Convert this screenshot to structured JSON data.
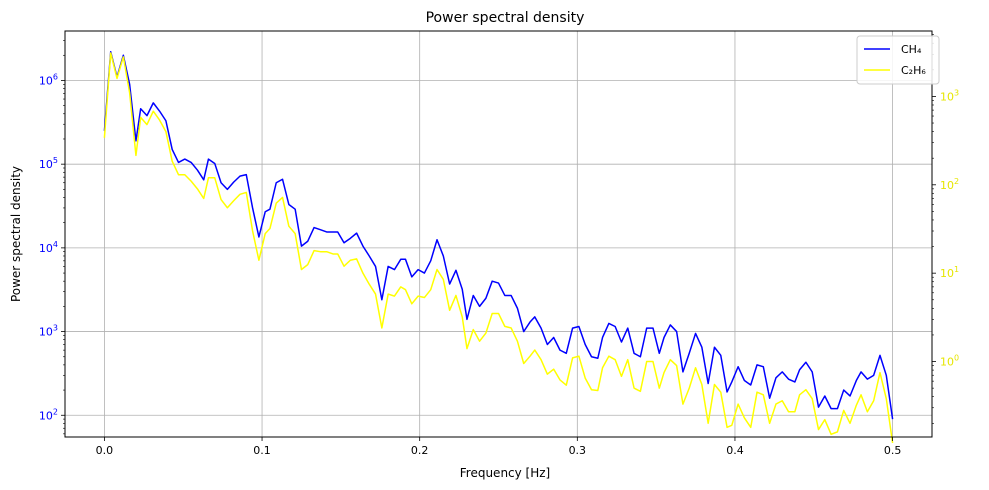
{
  "chart_data": {
    "type": "line",
    "title": "Power spectral density",
    "xlabel": "Frequency [Hz]",
    "ylabel_left": "Power spectral density",
    "ylabel_right": "",
    "xlim": [
      -0.025,
      0.525
    ],
    "x_ticks": [
      0.0,
      0.1,
      0.2,
      0.3,
      0.4,
      0.5
    ],
    "x_tick_labels": [
      "0.0",
      "0.1",
      "0.2",
      "0.3",
      "0.4",
      "0.5"
    ],
    "left_axis": {
      "scale": "log",
      "ylim": [
        55,
        3900000
      ],
      "ticks": [
        100,
        1000,
        10000,
        100000,
        1000000
      ],
      "tick_labels": [
        {
          "base": "10",
          "exp": "2"
        },
        {
          "base": "10",
          "exp": "3"
        },
        {
          "base": "10",
          "exp": "4"
        },
        {
          "base": "10",
          "exp": "5"
        },
        {
          "base": "10",
          "exp": "6"
        }
      ],
      "color": "#0000ff"
    },
    "right_axis": {
      "scale": "log",
      "ylim": [
        0.14,
        5500
      ],
      "ticks": [
        1,
        10,
        100,
        1000
      ],
      "tick_labels": [
        {
          "base": "10",
          "exp": "0"
        },
        {
          "base": "10",
          "exp": "1"
        },
        {
          "base": "10",
          "exp": "2"
        },
        {
          "base": "10",
          "exp": "3"
        }
      ],
      "color": "#e6e600"
    },
    "grid": true,
    "legend_position": "top-right",
    "series": [
      {
        "name": "CH₄",
        "axis": "left",
        "color": "#0000ff",
        "points": [
          [
            0.0,
            250000
          ],
          [
            0.004,
            2200000
          ],
          [
            0.008,
            1100000
          ],
          [
            0.012,
            2000000
          ],
          [
            0.016,
            900000
          ],
          [
            0.02,
            190000
          ],
          [
            0.023,
            460000
          ],
          [
            0.027,
            380000
          ],
          [
            0.031,
            540000
          ],
          [
            0.035,
            430000
          ],
          [
            0.039,
            330000
          ],
          [
            0.043,
            150000
          ],
          [
            0.047,
            105000
          ],
          [
            0.051,
            115000
          ],
          [
            0.055,
            105000
          ],
          [
            0.059,
            85000
          ],
          [
            0.063,
            65000
          ],
          [
            0.066,
            115000
          ],
          [
            0.07,
            102000
          ],
          [
            0.074,
            60000
          ],
          [
            0.078,
            50000
          ],
          [
            0.082,
            61000
          ],
          [
            0.086,
            72000
          ],
          [
            0.09,
            75000
          ],
          [
            0.094,
            30000
          ],
          [
            0.098,
            13500
          ],
          [
            0.102,
            27000
          ],
          [
            0.105,
            29000
          ],
          [
            0.109,
            60000
          ],
          [
            0.113,
            66000
          ],
          [
            0.117,
            33000
          ],
          [
            0.121,
            29000
          ],
          [
            0.125,
            10500
          ],
          [
            0.129,
            12000
          ],
          [
            0.133,
            17500
          ],
          [
            0.137,
            16500
          ],
          [
            0.141,
            15500
          ],
          [
            0.145,
            15500
          ],
          [
            0.148,
            15500
          ],
          [
            0.152,
            11500
          ],
          [
            0.156,
            13000
          ],
          [
            0.16,
            15000
          ],
          [
            0.164,
            10500
          ],
          [
            0.168,
            8000
          ],
          [
            0.172,
            6000
          ],
          [
            0.176,
            2400
          ],
          [
            0.18,
            6000
          ],
          [
            0.184,
            5500
          ],
          [
            0.188,
            7300
          ],
          [
            0.191,
            7300
          ],
          [
            0.195,
            4500
          ],
          [
            0.199,
            5500
          ],
          [
            0.203,
            5000
          ],
          [
            0.207,
            7000
          ],
          [
            0.211,
            12500
          ],
          [
            0.215,
            8000
          ],
          [
            0.219,
            3700
          ],
          [
            0.223,
            5400
          ],
          [
            0.227,
            3200
          ],
          [
            0.23,
            1400
          ],
          [
            0.234,
            2700
          ],
          [
            0.238,
            2000
          ],
          [
            0.242,
            2500
          ],
          [
            0.246,
            4000
          ],
          [
            0.25,
            3800
          ],
          [
            0.254,
            2700
          ],
          [
            0.258,
            2700
          ],
          [
            0.262,
            1900
          ],
          [
            0.266,
            1000
          ],
          [
            0.27,
            1300
          ],
          [
            0.273,
            1500
          ],
          [
            0.277,
            1100
          ],
          [
            0.281,
            700
          ],
          [
            0.285,
            850
          ],
          [
            0.289,
            600
          ],
          [
            0.293,
            550
          ],
          [
            0.297,
            1100
          ],
          [
            0.301,
            1150
          ],
          [
            0.305,
            700
          ],
          [
            0.309,
            500
          ],
          [
            0.313,
            480
          ],
          [
            0.316,
            850
          ],
          [
            0.32,
            1250
          ],
          [
            0.324,
            1150
          ],
          [
            0.328,
            750
          ],
          [
            0.332,
            1100
          ],
          [
            0.336,
            550
          ],
          [
            0.34,
            500
          ],
          [
            0.344,
            1100
          ],
          [
            0.348,
            1100
          ],
          [
            0.352,
            550
          ],
          [
            0.355,
            850
          ],
          [
            0.359,
            1200
          ],
          [
            0.363,
            1000
          ],
          [
            0.367,
            330
          ],
          [
            0.371,
            550
          ],
          [
            0.375,
            950
          ],
          [
            0.379,
            650
          ],
          [
            0.383,
            240
          ],
          [
            0.387,
            650
          ],
          [
            0.391,
            520
          ],
          [
            0.395,
            190
          ],
          [
            0.398,
            250
          ],
          [
            0.402,
            380
          ],
          [
            0.406,
            260
          ],
          [
            0.41,
            230
          ],
          [
            0.414,
            400
          ],
          [
            0.418,
            380
          ],
          [
            0.422,
            160
          ],
          [
            0.426,
            280
          ],
          [
            0.43,
            330
          ],
          [
            0.434,
            270
          ],
          [
            0.438,
            250
          ],
          [
            0.441,
            350
          ],
          [
            0.445,
            430
          ],
          [
            0.449,
            330
          ],
          [
            0.453,
            125
          ],
          [
            0.457,
            170
          ],
          [
            0.461,
            120
          ],
          [
            0.465,
            120
          ],
          [
            0.469,
            200
          ],
          [
            0.473,
            170
          ],
          [
            0.477,
            260
          ],
          [
            0.48,
            330
          ],
          [
            0.484,
            270
          ],
          [
            0.488,
            300
          ],
          [
            0.492,
            520
          ],
          [
            0.496,
            300
          ],
          [
            0.5,
            90
          ]
        ]
      },
      {
        "name": "C₂H₆",
        "axis": "right",
        "color": "#ffff00",
        "points": [
          [
            0.0,
            340
          ],
          [
            0.004,
            3100
          ],
          [
            0.008,
            1600
          ],
          [
            0.012,
            2800
          ],
          [
            0.016,
            1100
          ],
          [
            0.02,
            215
          ],
          [
            0.023,
            580
          ],
          [
            0.027,
            480
          ],
          [
            0.031,
            680
          ],
          [
            0.035,
            540
          ],
          [
            0.039,
            400
          ],
          [
            0.043,
            185
          ],
          [
            0.047,
            130
          ],
          [
            0.051,
            130
          ],
          [
            0.055,
            110
          ],
          [
            0.059,
            90
          ],
          [
            0.063,
            70
          ],
          [
            0.066,
            120
          ],
          [
            0.07,
            120
          ],
          [
            0.074,
            68
          ],
          [
            0.078,
            55
          ],
          [
            0.082,
            66
          ],
          [
            0.086,
            78
          ],
          [
            0.09,
            82
          ],
          [
            0.094,
            30
          ],
          [
            0.098,
            14
          ],
          [
            0.102,
            28
          ],
          [
            0.105,
            32
          ],
          [
            0.109,
            62
          ],
          [
            0.113,
            72
          ],
          [
            0.117,
            34
          ],
          [
            0.121,
            28
          ],
          [
            0.125,
            11
          ],
          [
            0.129,
            12.5
          ],
          [
            0.133,
            18
          ],
          [
            0.137,
            17.5
          ],
          [
            0.141,
            17.5
          ],
          [
            0.145,
            16.5
          ],
          [
            0.148,
            16.5
          ],
          [
            0.152,
            12
          ],
          [
            0.156,
            14
          ],
          [
            0.16,
            14.5
          ],
          [
            0.164,
            10
          ],
          [
            0.168,
            7.5
          ],
          [
            0.172,
            5.8
          ],
          [
            0.176,
            2.4
          ],
          [
            0.18,
            5.8
          ],
          [
            0.184,
            5.5
          ],
          [
            0.188,
            7
          ],
          [
            0.191,
            6.5
          ],
          [
            0.195,
            4.5
          ],
          [
            0.199,
            5.5
          ],
          [
            0.203,
            5.3
          ],
          [
            0.207,
            6.5
          ],
          [
            0.211,
            11
          ],
          [
            0.215,
            8.5
          ],
          [
            0.219,
            3.8
          ],
          [
            0.223,
            5.6
          ],
          [
            0.227,
            3.2
          ],
          [
            0.23,
            1.4
          ],
          [
            0.234,
            2.3
          ],
          [
            0.238,
            1.7
          ],
          [
            0.242,
            2.1
          ],
          [
            0.246,
            3.5
          ],
          [
            0.25,
            3.5
          ],
          [
            0.254,
            2.5
          ],
          [
            0.258,
            2.4
          ],
          [
            0.262,
            1.7
          ],
          [
            0.266,
            0.95
          ],
          [
            0.27,
            1.15
          ],
          [
            0.273,
            1.35
          ],
          [
            0.277,
            1.05
          ],
          [
            0.281,
            0.72
          ],
          [
            0.285,
            0.82
          ],
          [
            0.289,
            0.62
          ],
          [
            0.293,
            0.54
          ],
          [
            0.297,
            1.1
          ],
          [
            0.301,
            1.15
          ],
          [
            0.305,
            0.65
          ],
          [
            0.309,
            0.48
          ],
          [
            0.313,
            0.47
          ],
          [
            0.316,
            0.85
          ],
          [
            0.32,
            1.15
          ],
          [
            0.324,
            1.05
          ],
          [
            0.328,
            0.68
          ],
          [
            0.332,
            1.05
          ],
          [
            0.336,
            0.5
          ],
          [
            0.34,
            0.46
          ],
          [
            0.344,
            1.0
          ],
          [
            0.348,
            1.0
          ],
          [
            0.352,
            0.5
          ],
          [
            0.355,
            0.75
          ],
          [
            0.359,
            1.05
          ],
          [
            0.363,
            0.9
          ],
          [
            0.367,
            0.33
          ],
          [
            0.371,
            0.5
          ],
          [
            0.375,
            0.85
          ],
          [
            0.379,
            0.55
          ],
          [
            0.383,
            0.2
          ],
          [
            0.387,
            0.55
          ],
          [
            0.391,
            0.45
          ],
          [
            0.395,
            0.18
          ],
          [
            0.398,
            0.19
          ],
          [
            0.402,
            0.33
          ],
          [
            0.406,
            0.23
          ],
          [
            0.41,
            0.18
          ],
          [
            0.414,
            0.45
          ],
          [
            0.418,
            0.42
          ],
          [
            0.422,
            0.2
          ],
          [
            0.426,
            0.33
          ],
          [
            0.43,
            0.36
          ],
          [
            0.434,
            0.27
          ],
          [
            0.438,
            0.27
          ],
          [
            0.441,
            0.42
          ],
          [
            0.445,
            0.48
          ],
          [
            0.449,
            0.38
          ],
          [
            0.453,
            0.17
          ],
          [
            0.457,
            0.22
          ],
          [
            0.461,
            0.15
          ],
          [
            0.465,
            0.16
          ],
          [
            0.469,
            0.28
          ],
          [
            0.473,
            0.2
          ],
          [
            0.477,
            0.32
          ],
          [
            0.48,
            0.42
          ],
          [
            0.484,
            0.27
          ],
          [
            0.488,
            0.36
          ],
          [
            0.492,
            0.75
          ],
          [
            0.496,
            0.38
          ],
          [
            0.5,
            0.12
          ]
        ]
      }
    ]
  }
}
